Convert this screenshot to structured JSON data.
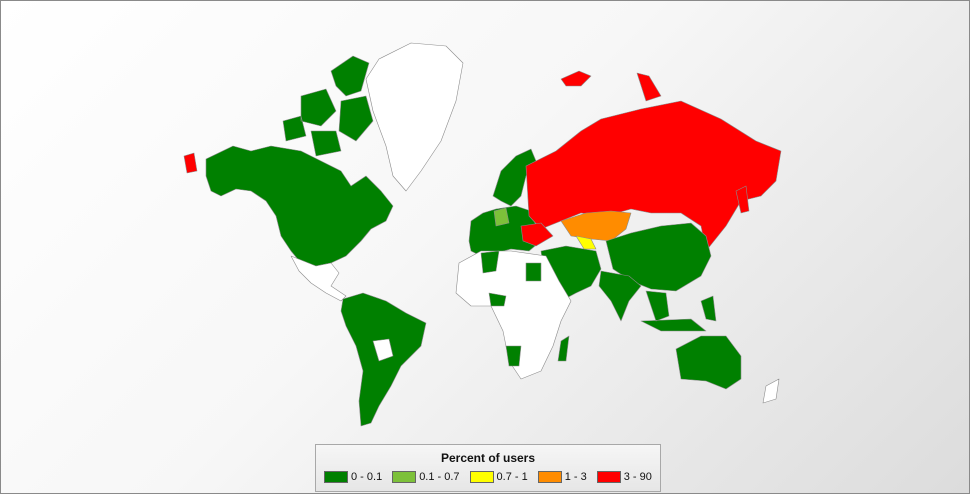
{
  "legend": {
    "title": "Percent of users",
    "items": [
      {
        "label": "0 - 0.1",
        "color": "#008000"
      },
      {
        "label": "0.1 - 0.7",
        "color": "#7dc13a"
      },
      {
        "label": "0.7 - 1",
        "color": "#ffff00"
      },
      {
        "label": "1 - 3",
        "color": "#ff8c00"
      },
      {
        "label": "3 - 90",
        "color": "#ff0000"
      }
    ],
    "no_data_color": "#ffffff"
  }
}
